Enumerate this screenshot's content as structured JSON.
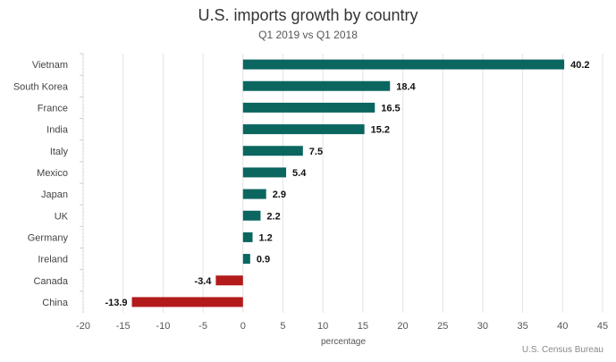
{
  "chart_data": {
    "type": "bar",
    "orientation": "horizontal",
    "title": "U.S. imports growth by country",
    "subtitle": "Q1 2019 vs Q1 2018",
    "xlabel": "percentage",
    "ylabel": "",
    "source": "U.S. Census Bureau",
    "categories": [
      "Vietnam",
      "South Korea",
      "France",
      "India",
      "Italy",
      "Mexico",
      "Japan",
      "UK",
      "Germany",
      "Ireland",
      "Canada",
      "China"
    ],
    "values": [
      40.2,
      18.4,
      16.5,
      15.2,
      7.5,
      5.4,
      2.9,
      2.2,
      1.2,
      0.9,
      -3.4,
      -13.9
    ],
    "value_labels": [
      "40.2",
      "18.4",
      "16.5",
      "15.2",
      "7.5",
      "5.4",
      "2.9",
      "2.2",
      "1.2",
      "0.9",
      "-3.4",
      "-13.9"
    ],
    "xlim": [
      -20,
      45
    ],
    "xticks": [
      -20,
      -15,
      -10,
      -5,
      0,
      5,
      10,
      15,
      20,
      25,
      30,
      35,
      40,
      45
    ],
    "grid": true,
    "colors": {
      "positive": "#0b6660",
      "negative": "#b31b1b",
      "grid": "#e3e3e3"
    }
  }
}
